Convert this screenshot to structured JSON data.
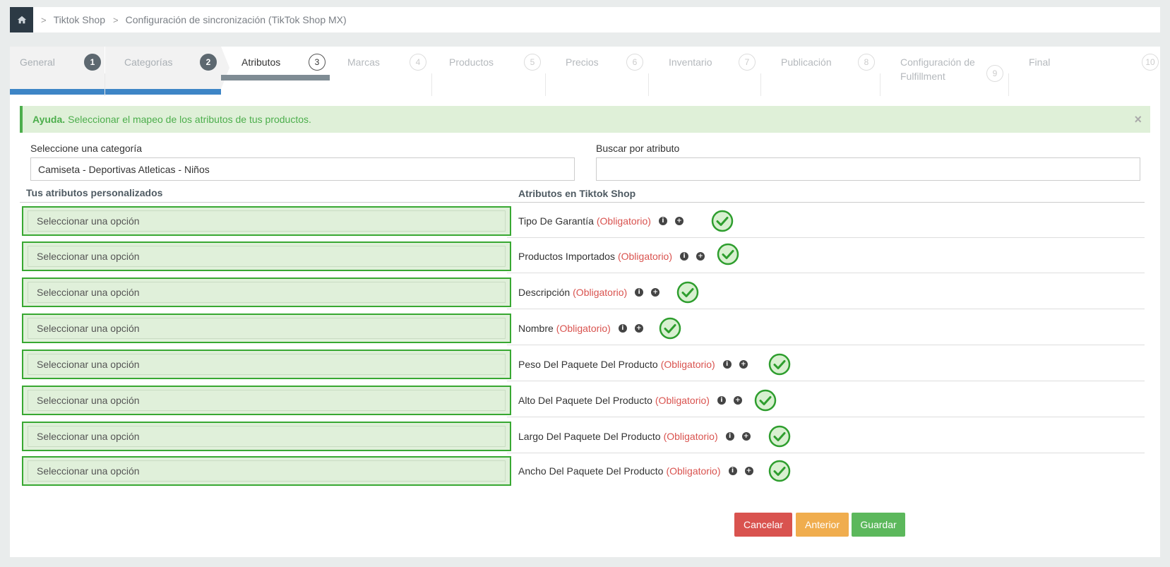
{
  "breadcrumb": {
    "items": [
      "Tiktok Shop",
      "Configuración de sincronización (TikTok Shop MX)"
    ]
  },
  "wizard": {
    "steps": [
      {
        "label": "General",
        "num": "1",
        "state": "done"
      },
      {
        "label": "Categorías",
        "num": "2",
        "state": "done"
      },
      {
        "label": "Atributos",
        "num": "3",
        "state": "active"
      },
      {
        "label": "Marcas",
        "num": "4",
        "state": "pending"
      },
      {
        "label": "Productos",
        "num": "5",
        "state": "pending"
      },
      {
        "label": "Precios",
        "num": "6",
        "state": "pending"
      },
      {
        "label": "Inventario",
        "num": "7",
        "state": "pending"
      },
      {
        "label": "Publicación",
        "num": "8",
        "state": "pending"
      },
      {
        "label": "Configuración de Fulfillment",
        "num": "9",
        "state": "pending"
      },
      {
        "label": "Final",
        "num": "10",
        "state": "pending"
      }
    ]
  },
  "alert": {
    "title": "Ayuda.",
    "text": "Seleccionar el mapeo de los atributos de tus productos.",
    "close": "×"
  },
  "filters": {
    "category_label": "Seleccione una categoría",
    "category_value": "Camiseta - Deportivas Atleticas - Niños",
    "search_label": "Buscar por atributo",
    "search_value": ""
  },
  "columns": {
    "left": "Tus atributos personalizados",
    "right": "Atributos en Tiktok Shop"
  },
  "rows": [
    {
      "select": "Seleccionar una opción",
      "attr": "Tipo De Garantía",
      "req": "(Obligatorio)"
    },
    {
      "select": "Seleccionar una opción",
      "attr": "Productos Importados",
      "req": "(Obligatorio)"
    },
    {
      "select": "Seleccionar una opción",
      "attr": "Descripción",
      "req": "(Obligatorio)"
    },
    {
      "select": "Seleccionar una opción",
      "attr": "Nombre",
      "req": "(Obligatorio)"
    },
    {
      "select": "Seleccionar una opción",
      "attr": "Peso Del Paquete Del Producto",
      "req": "(Obligatorio)"
    },
    {
      "select": "Seleccionar una opción",
      "attr": "Alto Del Paquete Del Producto",
      "req": "(Obligatorio)"
    },
    {
      "select": "Seleccionar una opción",
      "attr": "Largo Del Paquete Del Producto",
      "req": "(Obligatorio)"
    },
    {
      "select": "Seleccionar una opción",
      "attr": "Ancho Del Paquete Del Producto",
      "req": "(Obligatorio)"
    }
  ],
  "buttons": {
    "cancel": "Cancelar",
    "prev": "Anterior",
    "save": "Guardar"
  },
  "colors": {
    "success": "#38a832",
    "required": "#d9534f",
    "progress": "#3d85c6"
  }
}
